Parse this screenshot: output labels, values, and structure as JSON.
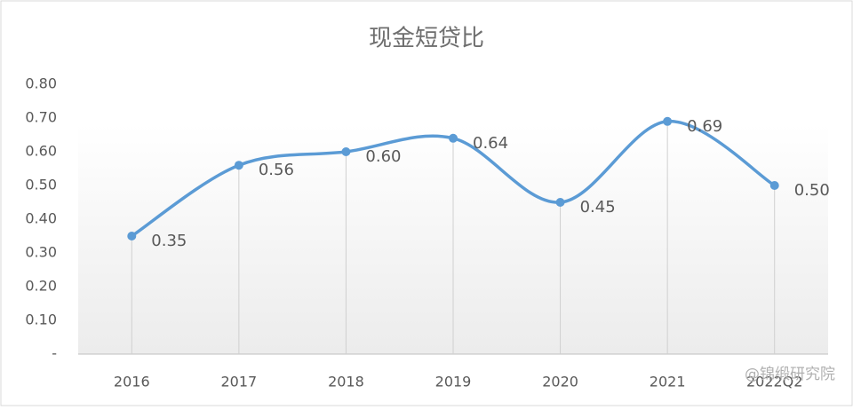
{
  "chart_data": {
    "type": "line",
    "title": "现金短贷比",
    "categories": [
      "2016",
      "2017",
      "2018",
      "2019",
      "2020",
      "2021",
      "2022Q2"
    ],
    "series": [
      {
        "name": "现金短贷比",
        "color": "#5b9bd5",
        "values": [
          0.35,
          0.56,
          0.6,
          0.64,
          0.45,
          0.69,
          0.5
        ],
        "value_labels": [
          "0.35",
          "0.56",
          "0.60",
          "0.64",
          "0.45",
          "0.69",
          "0.50"
        ]
      }
    ],
    "ylim": [
      0,
      0.8
    ],
    "yticks": [
      {
        "value": 0,
        "label": "-"
      },
      {
        "value": 0.1,
        "label": "0.10"
      },
      {
        "value": 0.2,
        "label": "0.20"
      },
      {
        "value": 0.3,
        "label": "0.30"
      },
      {
        "value": 0.4,
        "label": "0.40"
      },
      {
        "value": 0.5,
        "label": "0.50"
      },
      {
        "value": 0.6,
        "label": "0.60"
      },
      {
        "value": 0.7,
        "label": "0.70"
      },
      {
        "value": 0.8,
        "label": "0.80"
      }
    ],
    "smooth": true,
    "drop_lines": true,
    "watermark": "@锦缎研究院"
  }
}
